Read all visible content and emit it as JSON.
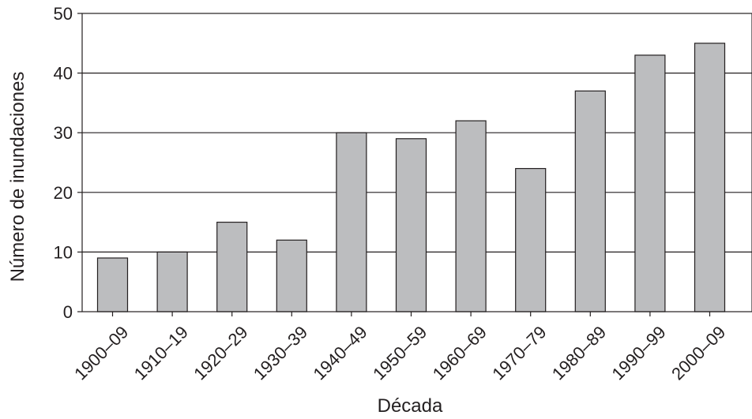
{
  "chart_data": {
    "type": "bar",
    "categories": [
      "1900–09",
      "1910–19",
      "1920–29",
      "1930–39",
      "1940–49",
      "1950–59",
      "1960–69",
      "1970–79",
      "1980–89",
      "1990–99",
      "2000–09"
    ],
    "values": [
      9,
      10,
      15,
      12,
      30,
      29,
      32,
      24,
      37,
      43,
      45
    ],
    "xlabel": "Década",
    "ylabel": "Número de inundaciones",
    "ylim": [
      0,
      50
    ],
    "yticks": [
      0,
      10,
      20,
      30,
      40,
      50
    ],
    "grid": true,
    "bar_color": "#bcbdbf",
    "line_color": "#231f20"
  }
}
